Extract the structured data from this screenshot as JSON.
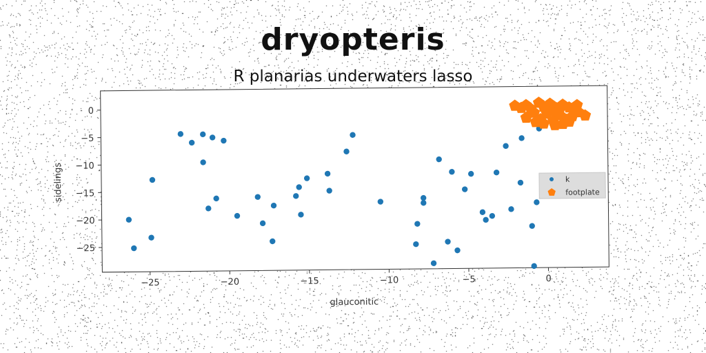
{
  "title": "dryopteris",
  "subtitle": "R planarias underwaters lasso",
  "colors": {
    "series_k": "#1f77b4",
    "series_footplate": "#ff7f0e",
    "axes": "#333333",
    "legend_bg": "#dddddd"
  },
  "chart_data": {
    "type": "scatter",
    "xlabel": "glauconitic",
    "ylabel": "sidelings",
    "xlim": [
      -28,
      3.8
    ],
    "ylim": [
      -29.5,
      3.5
    ],
    "xticks": [
      -25,
      -20,
      -15,
      -10,
      -5,
      0
    ],
    "yticks": [
      0,
      -5,
      -10,
      -15,
      -20,
      -25
    ],
    "legend_position": "right",
    "grid": false,
    "series": [
      {
        "name": "k",
        "marker": "circle",
        "points": [
          [
            -26.3,
            -20.0
          ],
          [
            -26.0,
            -25.2
          ],
          [
            -24.8,
            -12.8
          ],
          [
            -24.9,
            -23.3
          ],
          [
            -23.0,
            -4.5
          ],
          [
            -22.3,
            -6.1
          ],
          [
            -21.6,
            -4.6
          ],
          [
            -21.6,
            -9.7
          ],
          [
            -21.0,
            -5.2
          ],
          [
            -20.3,
            -5.8
          ],
          [
            -21.3,
            -18.1
          ],
          [
            -20.8,
            -16.3
          ],
          [
            -19.5,
            -19.5
          ],
          [
            -18.2,
            -16.1
          ],
          [
            -17.9,
            -20.9
          ],
          [
            -17.3,
            -24.2
          ],
          [
            -17.2,
            -17.7
          ],
          [
            -15.8,
            -16.0
          ],
          [
            -15.6,
            -14.4
          ],
          [
            -15.5,
            -19.4
          ],
          [
            -15.1,
            -12.8
          ],
          [
            -13.8,
            -12.0
          ],
          [
            -13.7,
            -15.1
          ],
          [
            -12.6,
            -8.0
          ],
          [
            -12.2,
            -5.0
          ],
          [
            -10.5,
            -17.2
          ],
          [
            -8.2,
            -21.3
          ],
          [
            -8.3,
            -25.0
          ],
          [
            -7.8,
            -16.6
          ],
          [
            -7.8,
            -17.5
          ],
          [
            -7.2,
            -28.5
          ],
          [
            -6.8,
            -9.6
          ],
          [
            -6.3,
            -24.6
          ],
          [
            -6.0,
            -11.9
          ],
          [
            -5.7,
            -26.2
          ],
          [
            -5.2,
            -15.1
          ],
          [
            -4.8,
            -12.3
          ],
          [
            -4.1,
            -19.3
          ],
          [
            -3.9,
            -20.7
          ],
          [
            -3.5,
            -20.0
          ],
          [
            -3.2,
            -12.1
          ],
          [
            -2.6,
            -7.3
          ],
          [
            -2.3,
            -18.8
          ],
          [
            -1.7,
            -14.0
          ],
          [
            -1.6,
            -5.9
          ],
          [
            -1.0,
            -21.9
          ],
          [
            -0.9,
            -29.2
          ],
          [
            -0.7,
            -17.6
          ],
          [
            -0.5,
            -4.2
          ]
        ]
      },
      {
        "name": "footplate",
        "marker": "pentagon",
        "points": [
          [
            -2.0,
            0.0
          ],
          [
            -1.6,
            -0.4
          ],
          [
            -1.3,
            0.1
          ],
          [
            -1.0,
            -0.6
          ],
          [
            -0.5,
            0.5
          ],
          [
            -0.2,
            -0.2
          ],
          [
            0.2,
            0.3
          ],
          [
            0.6,
            -0.5
          ],
          [
            1.0,
            0.1
          ],
          [
            1.4,
            -0.4
          ],
          [
            1.9,
            0.0
          ],
          [
            2.4,
            -1.9
          ],
          [
            -1.3,
            -2.2
          ],
          [
            -0.8,
            -1.3
          ],
          [
            -0.4,
            -2.5
          ],
          [
            0.0,
            -1.5
          ],
          [
            0.4,
            -2.8
          ],
          [
            0.8,
            -1.8
          ],
          [
            1.2,
            -2.6
          ],
          [
            1.6,
            -2.0
          ],
          [
            2.0,
            -1.3
          ],
          [
            -0.2,
            -3.3
          ],
          [
            0.5,
            -3.6
          ],
          [
            1.0,
            -3.4
          ],
          [
            1.4,
            -3.0
          ],
          [
            0.3,
            -1.0
          ],
          [
            -0.7,
            -3.0
          ],
          [
            1.7,
            -0.9
          ],
          [
            0.8,
            -0.8
          ]
        ]
      }
    ]
  }
}
